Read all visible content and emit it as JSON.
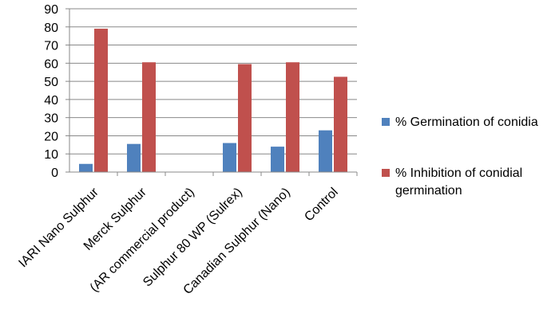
{
  "chart_data": {
    "type": "bar",
    "categories": [
      "IARI Nano Sulphur",
      "Merck Sulphur",
      "(AR commercial product)",
      "Sulphur 80 WP  (Sulrex)",
      "Canadian Sulphur (Nano)",
      "Control"
    ],
    "series": [
      {
        "name": "% Germination of conidia",
        "color": "#4F81BD",
        "values": [
          4.5,
          15.5,
          0,
          16,
          14,
          23
        ]
      },
      {
        "name": "% Inhibition of conidial germination",
        "color": "#C0504D",
        "values": [
          79,
          60.5,
          0,
          59.5,
          60.5,
          52.5
        ]
      }
    ],
    "ylim": [
      0,
      90
    ],
    "yticks": [
      0,
      10,
      20,
      30,
      40,
      50,
      60,
      70,
      80,
      90
    ],
    "grid": true,
    "legend_position": "right",
    "legend_lines": [
      [
        "% Germination of conidia"
      ],
      [
        "% Inhibition of conidial",
        "germination"
      ]
    ]
  }
}
